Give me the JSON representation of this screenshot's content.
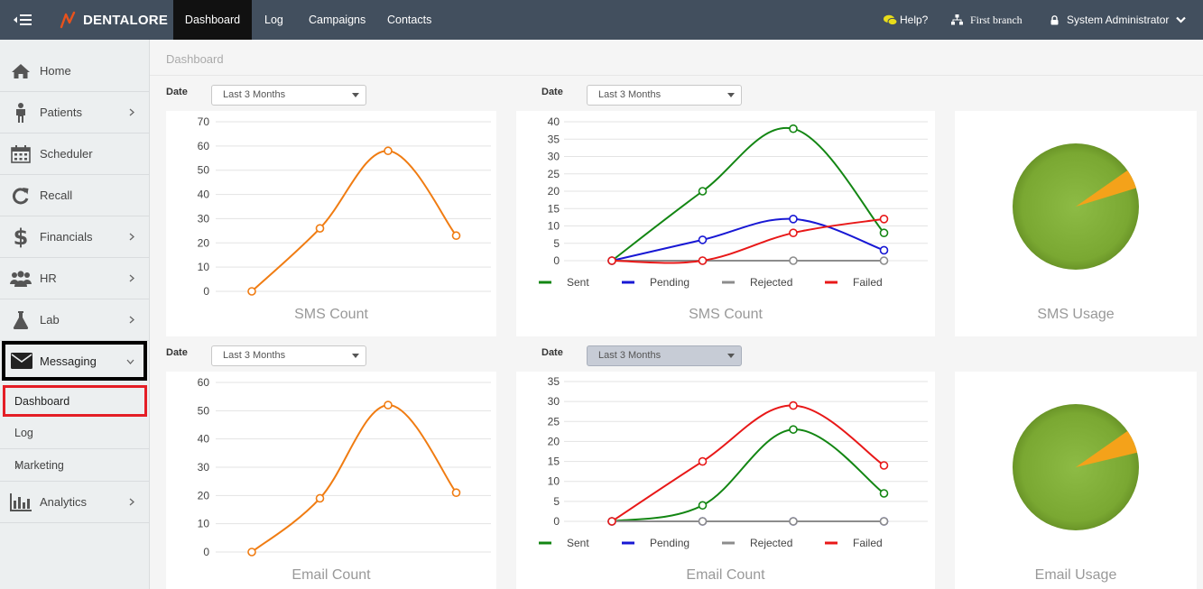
{
  "app": {
    "brand": "DENTALORE"
  },
  "topnav": {
    "tabs": [
      "Dashboard",
      "Log",
      "Campaigns",
      "Contacts"
    ],
    "help": "Help?",
    "branch": "First branch",
    "user": "System Administrator"
  },
  "sidebar": {
    "items": [
      {
        "label": "Home",
        "icon": "home-icon"
      },
      {
        "label": "Patients",
        "icon": "patient-icon"
      },
      {
        "label": "Scheduler",
        "icon": "calendar-icon"
      },
      {
        "label": "Recall",
        "icon": "refresh-icon"
      },
      {
        "label": "Financials",
        "icon": "dollar-icon"
      },
      {
        "label": "HR",
        "icon": "users-icon"
      },
      {
        "label": "Lab",
        "icon": "flask-icon"
      },
      {
        "label": "Messaging",
        "icon": "envelope-icon"
      },
      {
        "label": "Analytics",
        "icon": "bar-chart-icon"
      }
    ],
    "subitems": [
      "Dashboard",
      "Log",
      "Marketing"
    ]
  },
  "main": {
    "breadcrumb": "Dashboard",
    "date_label": "Date",
    "date_option": "Last 3 Months"
  },
  "colors": {
    "orange": "#f07c12",
    "sent": "#138613",
    "pending": "#1818d4",
    "rejected": "#8c8c8c",
    "failed": "#e81818",
    "pie_green": "#7aa832",
    "pie_orange": "#f4a21a",
    "topbar": "#424f5e"
  },
  "chart_data": [
    {
      "type": "line",
      "title": "SMS Count",
      "x": [
        1,
        2,
        3,
        4
      ],
      "series": [
        {
          "values": [
            0,
            26,
            58,
            23
          ]
        }
      ],
      "ylim": [
        0,
        70
      ],
      "yticks": [
        "0",
        "10",
        "20",
        "30",
        "40",
        "50",
        "60",
        "70"
      ]
    },
    {
      "type": "line",
      "title": "SMS Count",
      "x": [
        1,
        2,
        3,
        4
      ],
      "series": [
        {
          "name": "Sent",
          "values": [
            0,
            20,
            38,
            8
          ]
        },
        {
          "name": "Pending",
          "values": [
            0,
            6,
            12,
            3
          ]
        },
        {
          "name": "Rejected",
          "values": [
            0,
            0,
            0,
            0
          ]
        },
        {
          "name": "Failed",
          "values": [
            0,
            0,
            8,
            12
          ]
        }
      ],
      "ylim": [
        0,
        40
      ],
      "yticks": [
        "0",
        "5",
        "10",
        "15",
        "20",
        "25",
        "30",
        "35",
        "40"
      ]
    },
    {
      "type": "pie",
      "title": "SMS Usage",
      "values": [
        95,
        5
      ]
    },
    {
      "type": "line",
      "title": "Email Count",
      "x": [
        1,
        2,
        3,
        4
      ],
      "series": [
        {
          "values": [
            0,
            19,
            52,
            21
          ]
        }
      ],
      "ylim": [
        0,
        60
      ],
      "yticks": [
        "0",
        "10",
        "20",
        "30",
        "40",
        "50",
        "60"
      ]
    },
    {
      "type": "line",
      "title": "Email Count",
      "x": [
        1,
        2,
        3,
        4
      ],
      "series": [
        {
          "name": "Sent",
          "values": [
            0,
            4,
            23,
            7
          ]
        },
        {
          "name": "Pending",
          "values": [
            0,
            0,
            0,
            0
          ]
        },
        {
          "name": "Rejected",
          "values": [
            0,
            0,
            0,
            0
          ]
        },
        {
          "name": "Failed",
          "values": [
            0,
            15,
            29,
            14
          ]
        }
      ],
      "ylim": [
        0,
        35
      ],
      "yticks": [
        "0",
        "5",
        "10",
        "15",
        "20",
        "25",
        "30",
        "35"
      ]
    },
    {
      "type": "pie",
      "title": "Email Usage",
      "values": [
        94,
        6
      ]
    }
  ]
}
